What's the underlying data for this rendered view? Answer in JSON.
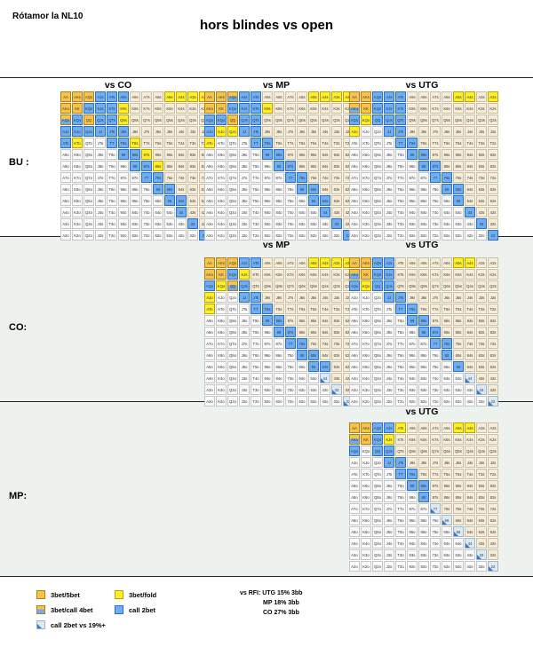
{
  "header": {
    "author": "Rótamor la NL10",
    "title": "hors blindes vs open"
  },
  "rows": [
    {
      "position": "BU :",
      "charts": [
        {
          "title": "vs CO",
          "chart": "bu_vs_co"
        },
        {
          "title": "vs MP",
          "chart": "bu_vs_mp"
        },
        {
          "title": "vs UTG",
          "chart": "bu_vs_utg"
        }
      ]
    },
    {
      "position": "CO:",
      "charts": [
        {
          "title": "vs MP",
          "chart": "co_vs_mp"
        },
        {
          "title": "vs UTG",
          "chart": "co_vs_utg"
        }
      ]
    },
    {
      "position": "MP:",
      "charts": [
        {
          "title": "vs UTG",
          "chart": "mp_vs_utg"
        }
      ]
    }
  ],
  "ranks": [
    "A",
    "K",
    "Q",
    "J",
    "T",
    "9",
    "8",
    "7",
    "6",
    "5",
    "4",
    "3",
    "2"
  ],
  "legend": [
    {
      "key": "5bet",
      "label": "3bet/5bet",
      "color": "#f6c44c"
    },
    {
      "key": "fold",
      "label": "3bet/fold",
      "color": "#ffef29"
    },
    {
      "key": "call4",
      "label": "3bet/call 4bet",
      "color": "#f6c44c"
    },
    {
      "key": "call",
      "label": "call 2bet",
      "color": "#6eaef5"
    },
    {
      "key": "small",
      "label": "call 2bet vs 19%+",
      "color": "#3c78c8"
    }
  ],
  "rfi_note": {
    "line1": "vs RFI: UTG 15% 3bb",
    "line2": "MP 18% 3bb",
    "line3": "CO 27% 3bb"
  },
  "actions": {
    "bu_vs_co": {
      "5bet": [
        "AA",
        "KK",
        "AKs",
        "AKo",
        "AQs",
        "QQ"
      ],
      "call4": [
        "AQo"
      ],
      "fold": [
        "A5s",
        "A4s",
        "A3s",
        "A2s",
        "K9s",
        "Q9s",
        "T8s",
        "97s",
        "86s",
        "KTo"
      ],
      "call": [
        "AJs",
        "ATs",
        "A9s",
        "KQs",
        "KJs",
        "KTs",
        "QJs",
        "QTs",
        "JTs",
        "J9s",
        "T9s",
        "JJ",
        "TT",
        "99",
        "88",
        "77",
        "66",
        "55",
        "44",
        "33",
        "22",
        "98s",
        "87s",
        "76s",
        "65s",
        "54s",
        "AJo",
        "KQo",
        "ATo",
        "KJo",
        "QJo"
      ],
      "small": []
    },
    "bu_vs_mp": {
      "5bet": [
        "AA",
        "KK",
        "AKs",
        "AKo",
        "QQ"
      ],
      "call4": [
        "AQs"
      ],
      "fold": [
        "A5s",
        "A4s",
        "A3s",
        "A2s",
        "K9s",
        "QJo",
        "KJo",
        "ATo"
      ],
      "call": [
        "AJs",
        "ATs",
        "KQs",
        "KJs",
        "KTs",
        "QJs",
        "QTs",
        "JTs",
        "T9s",
        "98s",
        "87s",
        "76s",
        "65s",
        "54s",
        "JJ",
        "TT",
        "99",
        "88",
        "77",
        "66",
        "55",
        "44",
        "33",
        "22",
        "AQo",
        "AJo",
        "KQo"
      ],
      "small": []
    },
    "bu_vs_utg": {
      "5bet": [
        "AA",
        "KK",
        "AKs"
      ],
      "call4": [
        "AKo"
      ],
      "fold": [
        "A5s",
        "A4s",
        "A2s",
        "AJo",
        "KQo"
      ],
      "call": [
        "QQ",
        "JJ",
        "TT",
        "99",
        "88",
        "77",
        "66",
        "55",
        "44",
        "33",
        "22",
        "AQs",
        "AJs",
        "ATs",
        "KQs",
        "KJs",
        "KTs",
        "QJs",
        "QTs",
        "JTs",
        "T9s",
        "98s",
        "87s",
        "76s",
        "65s",
        "AQo"
      ],
      "small": []
    },
    "co_vs_mp": {
      "5bet": [
        "AA",
        "KK",
        "AKs",
        "AKo",
        "AQs"
      ],
      "call4": [
        "QQ"
      ],
      "fold": [
        "A5s",
        "A4s",
        "A3s",
        "A2s",
        "KJs",
        "ATo",
        "AJo",
        "KQo"
      ],
      "call": [
        "JJ",
        "TT",
        "99",
        "88",
        "77",
        "66",
        "55",
        "AJs",
        "ATs",
        "KQs",
        "QJs",
        "JTs",
        "T9s",
        "98s",
        "87s",
        "76s",
        "65s",
        "54s",
        "AQo"
      ],
      "small": [
        "44",
        "33",
        "22"
      ]
    },
    "co_vs_utg": {
      "5bet": [
        "AA",
        "KK",
        "AKs"
      ],
      "call4": [
        "AKo"
      ],
      "fold": [
        "A5s",
        "A4s",
        "KQo"
      ],
      "call": [
        "QQ",
        "JJ",
        "TT",
        "99",
        "88",
        "77",
        "66",
        "55",
        "AQs",
        "AJs",
        "KQs",
        "KJs",
        "QJs",
        "JTs",
        "T9s",
        "98s",
        "87s",
        "76s",
        "AQo"
      ],
      "small": [
        "44",
        "33",
        "22"
      ]
    },
    "mp_vs_utg": {
      "5bet": [
        "AA",
        "KK",
        "AKs"
      ],
      "call4": [
        "AKo"
      ],
      "fold": [
        "A5s",
        "A4s",
        "ATs",
        "KJs"
      ],
      "call": [
        "QQ",
        "JJ",
        "TT",
        "99",
        "88",
        "AQs",
        "AJs",
        "KQs",
        "QJs",
        "JTs",
        "T9s",
        "98s",
        "AQo"
      ],
      "small": [
        "77",
        "66",
        "55",
        "44",
        "33",
        "22"
      ]
    }
  }
}
